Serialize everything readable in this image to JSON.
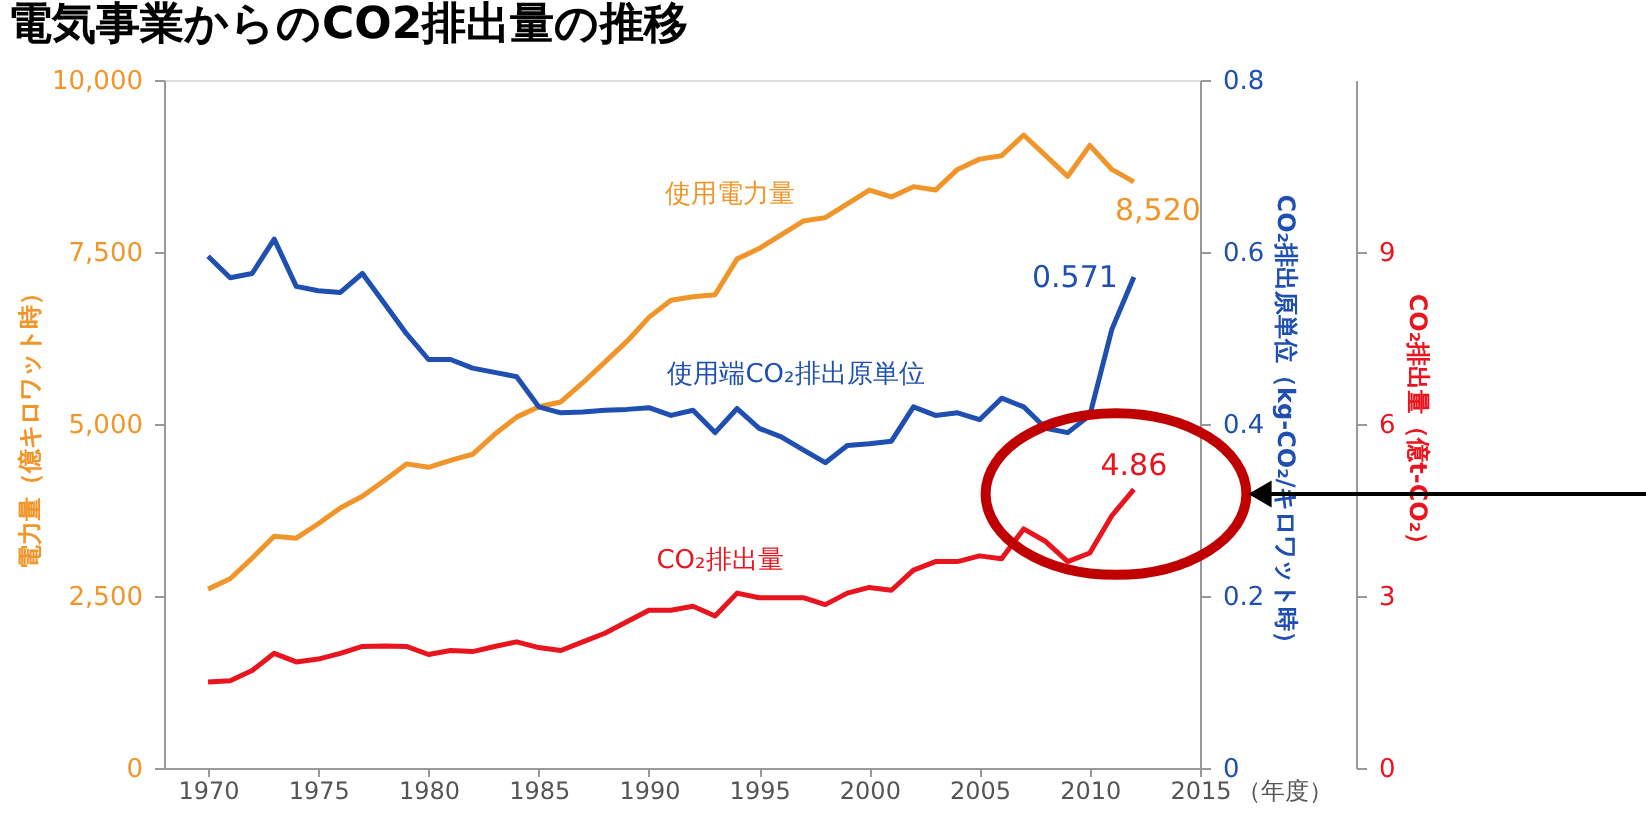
{
  "chart_data": {
    "type": "line",
    "title": "電気事業からのCO2排出量の推移",
    "xlabel": "（年度）",
    "ylabel": "電力量（億キロワット時）",
    "y2label": "CO₂排出原単位（kg-CO₂/キロワット時）",
    "y3label": "CO₂排出量（億t-CO₂）",
    "x": [
      1970,
      1971,
      1972,
      1973,
      1974,
      1975,
      1976,
      1977,
      1978,
      1979,
      1980,
      1981,
      1982,
      1983,
      1984,
      1985,
      1986,
      1987,
      1988,
      1989,
      1990,
      1991,
      1992,
      1993,
      1994,
      1995,
      1996,
      1997,
      1998,
      1999,
      2000,
      2001,
      2002,
      2003,
      2004,
      2005,
      2006,
      2007,
      2008,
      2009,
      2010,
      2011,
      2012
    ],
    "xlim": [
      1968,
      2015
    ],
    "xticks": [
      1970,
      1975,
      1980,
      1985,
      1990,
      1995,
      2000,
      2005,
      2010,
      2015
    ],
    "ylim": [
      0,
      10000
    ],
    "yticks": [
      {
        "value": 0,
        "label": "0"
      },
      {
        "value": 2500,
        "label": "2,500"
      },
      {
        "value": 5000,
        "label": "5,000"
      },
      {
        "value": 7500,
        "label": "7,500"
      },
      {
        "value": 10000,
        "label": "10,000"
      }
    ],
    "y2lim": [
      0,
      0.8
    ],
    "y2ticks": [
      {
        "value": 0,
        "label": "0"
      },
      0.2,
      0.4,
      0.6,
      0.8
    ],
    "y3lim": [
      0,
      12
    ],
    "y3ticks": [
      0,
      3,
      6,
      9
    ],
    "series": [
      {
        "name": "使用電力量",
        "color": "#f0952a",
        "values": [
          2600,
          2750,
          3050,
          3370,
          3340,
          3550,
          3780,
          3950,
          4180,
          4420,
          4370,
          4470,
          4560,
          4850,
          5100,
          5250,
          5320,
          5600,
          5900,
          6200,
          6550,
          6800,
          6850,
          6880,
          7400,
          7550,
          7750,
          7950,
          8000,
          8200,
          8400,
          8300,
          8450,
          8400,
          8700,
          8850,
          8900,
          9200,
          8900,
          8600,
          9050,
          8700,
          8520
        ],
        "value_labels": [
          null,
          null,
          null,
          null,
          null,
          null,
          null,
          null,
          null,
          null,
          null,
          null,
          null,
          null,
          null,
          null,
          null,
          null,
          null,
          null,
          null,
          null,
          null,
          null,
          null,
          null,
          null,
          null,
          null,
          null,
          null,
          null,
          null,
          null,
          null,
          null,
          null,
          null,
          null,
          null,
          null,
          null,
          "8,520"
        ]
      },
      {
        "name": "使用端CO₂排出原単位",
        "color": "#1f4fb0",
        "axis": "y2",
        "values": [
          0.595,
          0.57,
          0.575,
          0.615,
          0.56,
          0.555,
          0.553,
          0.575,
          0.54,
          0.505,
          0.475,
          0.475,
          0.465,
          0.46,
          0.455,
          0.42,
          0.413,
          0.414,
          0.416,
          0.417,
          0.419,
          0.41,
          0.416,
          0.39,
          0.418,
          0.395,
          0.385,
          0.37,
          0.355,
          0.375,
          0.377,
          0.38,
          0.42,
          0.41,
          0.413,
          0.405,
          0.43,
          0.42,
          0.395,
          0.39,
          0.41,
          0.51,
          0.571
        ],
        "value_labels": [
          null,
          null,
          null,
          null,
          null,
          null,
          null,
          null,
          null,
          null,
          null,
          null,
          null,
          null,
          null,
          null,
          null,
          null,
          null,
          null,
          null,
          null,
          null,
          null,
          null,
          null,
          null,
          null,
          null,
          null,
          null,
          null,
          null,
          null,
          null,
          null,
          null,
          null,
          null,
          null,
          null,
          null,
          "0.571"
        ]
      },
      {
        "name": "CO₂排出量",
        "color": "#e8141e",
        "axis": "y3",
        "values": [
          1.5,
          1.52,
          1.7,
          2.0,
          1.85,
          1.9,
          2.0,
          2.12,
          2.13,
          2.12,
          1.98,
          2.05,
          2.03,
          2.12,
          2.2,
          2.1,
          2.05,
          2.2,
          2.35,
          2.55,
          2.75,
          2.75,
          2.82,
          2.65,
          3.05,
          2.97,
          2.97,
          2.97,
          2.85,
          3.05,
          3.15,
          3.1,
          3.45,
          3.6,
          3.6,
          3.7,
          3.65,
          4.17,
          3.95,
          3.6,
          3.75,
          4.4,
          4.86
        ],
        "value_labels": [
          null,
          null,
          null,
          null,
          null,
          null,
          null,
          null,
          null,
          null,
          null,
          null,
          null,
          null,
          null,
          null,
          null,
          null,
          null,
          null,
          null,
          null,
          null,
          null,
          null,
          null,
          null,
          null,
          null,
          null,
          null,
          null,
          null,
          null,
          null,
          null,
          null,
          null,
          null,
          null,
          null,
          null,
          "4.86"
        ]
      }
    ]
  }
}
